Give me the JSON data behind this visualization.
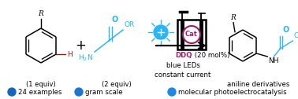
{
  "bg_color": "#ffffff",
  "cyan_blue": "#29B6F6",
  "magenta": "#9C1D6E",
  "black": "#000000",
  "dark_red": "#8B1A1A",
  "dot_colors": [
    "#1565C0",
    "#1976D2",
    "#1E88E5"
  ],
  "dot_labels": [
    "24 examples",
    "gram scale",
    "molecular photoelectrocatalysis"
  ],
  "label_fontsize": 6.2,
  "equiv_fontsize": 6.0,
  "fig_w": 3.78,
  "fig_h": 1.26,
  "dpi": 100
}
